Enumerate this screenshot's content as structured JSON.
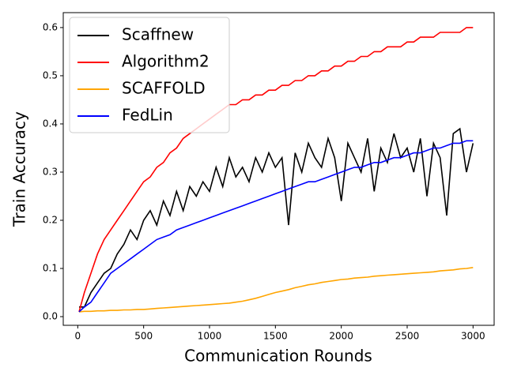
{
  "chart_data": {
    "type": "line",
    "x_label": "Communication Rounds",
    "y_label": "Train Accuracy",
    "x": [
      10,
      50,
      100,
      150,
      200,
      250,
      300,
      350,
      400,
      450,
      500,
      550,
      600,
      650,
      700,
      750,
      800,
      850,
      900,
      950,
      1000,
      1050,
      1100,
      1150,
      1200,
      1250,
      1300,
      1350,
      1400,
      1450,
      1500,
      1550,
      1600,
      1650,
      1700,
      1750,
      1800,
      1850,
      1900,
      1950,
      2000,
      2050,
      2100,
      2150,
      2200,
      2250,
      2300,
      2350,
      2400,
      2450,
      2500,
      2550,
      2600,
      2650,
      2700,
      2750,
      2800,
      2850,
      2900,
      2950,
      3000
    ],
    "series": [
      {
        "name": "Scaffnew",
        "color": "#000000",
        "values": [
          0.02,
          0.02,
          0.05,
          0.07,
          0.09,
          0.1,
          0.13,
          0.15,
          0.18,
          0.16,
          0.2,
          0.22,
          0.19,
          0.24,
          0.21,
          0.26,
          0.22,
          0.27,
          0.25,
          0.28,
          0.26,
          0.31,
          0.27,
          0.33,
          0.29,
          0.31,
          0.28,
          0.33,
          0.3,
          0.34,
          0.31,
          0.33,
          0.19,
          0.34,
          0.3,
          0.36,
          0.33,
          0.31,
          0.37,
          0.33,
          0.24,
          0.36,
          0.33,
          0.3,
          0.37,
          0.26,
          0.35,
          0.32,
          0.38,
          0.33,
          0.35,
          0.3,
          0.37,
          0.25,
          0.36,
          0.33,
          0.21,
          0.38,
          0.39,
          0.3,
          0.36
        ]
      },
      {
        "name": "Algorithm2",
        "color": "#ff0000",
        "values": [
          0.01,
          0.05,
          0.09,
          0.13,
          0.16,
          0.18,
          0.2,
          0.22,
          0.24,
          0.26,
          0.28,
          0.29,
          0.31,
          0.32,
          0.34,
          0.35,
          0.37,
          0.38,
          0.39,
          0.4,
          0.41,
          0.42,
          0.43,
          0.44,
          0.44,
          0.45,
          0.45,
          0.46,
          0.46,
          0.47,
          0.47,
          0.48,
          0.48,
          0.49,
          0.49,
          0.5,
          0.5,
          0.51,
          0.51,
          0.52,
          0.52,
          0.53,
          0.53,
          0.54,
          0.54,
          0.55,
          0.55,
          0.56,
          0.56,
          0.56,
          0.57,
          0.57,
          0.58,
          0.58,
          0.58,
          0.59,
          0.59,
          0.59,
          0.59,
          0.6,
          0.6
        ]
      },
      {
        "name": "SCAFFOLD",
        "color": "#ffa500",
        "values": [
          0.01,
          0.011,
          0.011,
          0.012,
          0.012,
          0.013,
          0.013,
          0.014,
          0.014,
          0.015,
          0.015,
          0.016,
          0.017,
          0.018,
          0.019,
          0.02,
          0.021,
          0.022,
          0.023,
          0.024,
          0.025,
          0.026,
          0.027,
          0.028,
          0.03,
          0.032,
          0.035,
          0.038,
          0.042,
          0.046,
          0.05,
          0.053,
          0.056,
          0.06,
          0.063,
          0.066,
          0.068,
          0.071,
          0.073,
          0.075,
          0.077,
          0.078,
          0.08,
          0.081,
          0.082,
          0.084,
          0.085,
          0.086,
          0.087,
          0.088,
          0.089,
          0.09,
          0.091,
          0.092,
          0.093,
          0.095,
          0.096,
          0.097,
          0.099,
          0.1,
          0.102
        ]
      },
      {
        "name": "FedLin",
        "color": "#0000ff",
        "values": [
          0.01,
          0.02,
          0.03,
          0.05,
          0.07,
          0.09,
          0.1,
          0.11,
          0.12,
          0.13,
          0.14,
          0.15,
          0.16,
          0.165,
          0.17,
          0.18,
          0.185,
          0.19,
          0.195,
          0.2,
          0.205,
          0.21,
          0.215,
          0.22,
          0.225,
          0.23,
          0.235,
          0.24,
          0.245,
          0.25,
          0.255,
          0.26,
          0.265,
          0.27,
          0.275,
          0.28,
          0.28,
          0.285,
          0.29,
          0.295,
          0.3,
          0.305,
          0.31,
          0.31,
          0.315,
          0.32,
          0.32,
          0.325,
          0.33,
          0.33,
          0.335,
          0.34,
          0.34,
          0.345,
          0.35,
          0.35,
          0.355,
          0.36,
          0.36,
          0.365,
          0.365
        ]
      }
    ],
    "xlim": [
      -110,
      3160
    ],
    "ylim": [
      -0.018,
      0.631
    ],
    "xticks": [
      0,
      500,
      1000,
      1500,
      2000,
      2500,
      3000
    ],
    "yticks": [
      {
        "value": 0,
        "label": "0.0"
      },
      0.1,
      0.2,
      0.3,
      0.4,
      0.5,
      0.6
    ],
    "legend": "upper-left"
  }
}
